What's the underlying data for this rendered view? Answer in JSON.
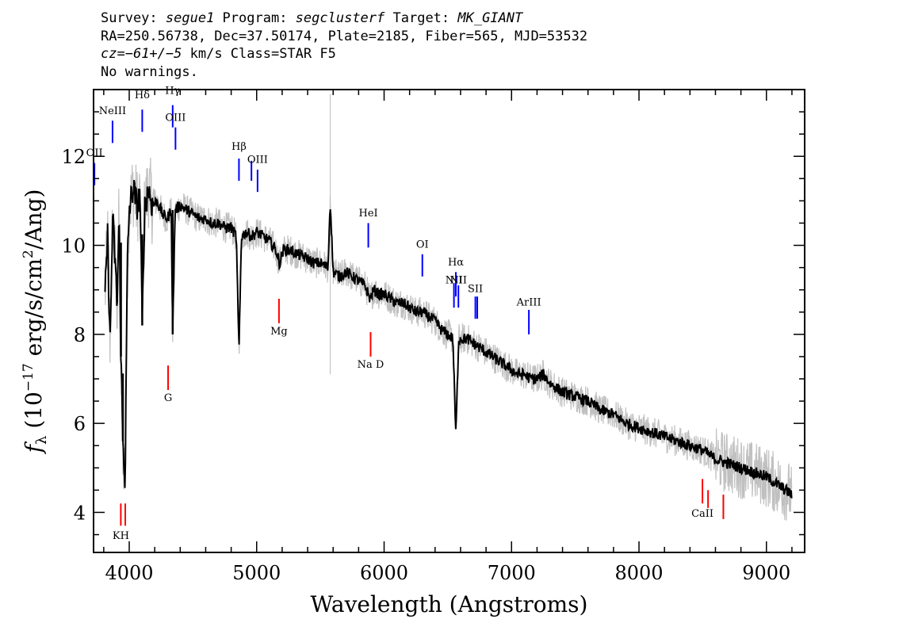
{
  "header": {
    "survey_prefix": "Survey: ",
    "survey": "segue1",
    "program_prefix": " Program: ",
    "program": "segclusterf",
    "target_prefix": " Target: ",
    "target": "MK_GIANT",
    "line2": "RA=250.56738, Dec=37.50174, Plate=2185, Fiber=565, MJD=53532",
    "cz_label": "cz",
    "cz_value": "=−61+/−5",
    "cz_rest": " km/s Class=STAR F5",
    "line4": "No warnings."
  },
  "colors": {
    "flux": "#000000",
    "error_band": "#c0c0c0",
    "emission": "#0000ff",
    "absorption": "#ff0000"
  },
  "chart_data": {
    "type": "line",
    "title": "",
    "xlabel": "Wavelength (Angstroms)",
    "ylabel_parts": {
      "f": "f",
      "lambda": "λ",
      "pre": " (10",
      "exp": "−17",
      "mid": " erg/s/cm",
      "exp2": "2",
      "post": "/Ang)"
    },
    "xlim": [
      3720,
      9300
    ],
    "ylim": [
      3.1,
      13.5
    ],
    "xticks": [
      4000,
      5000,
      6000,
      7000,
      8000,
      9000
    ],
    "yticks": [
      4,
      6,
      8,
      10,
      12
    ],
    "xtick_labels": [
      "4000",
      "5000",
      "6000",
      "7000",
      "8000",
      "9000"
    ],
    "ytick_labels": [
      "4",
      "6",
      "8",
      "10",
      "12"
    ],
    "series": [
      {
        "values": [
          [
            3810,
            8.8
          ],
          [
            3830,
            10.2
          ],
          [
            3850,
            7.8
          ],
          [
            3870,
            10.6
          ],
          [
            3890,
            9.6
          ],
          [
            3905,
            8.6
          ],
          [
            3920,
            10.7
          ],
          [
            3935,
            7.5
          ],
          [
            3950,
            5.6
          ],
          [
            3968,
            4.7
          ],
          [
            3985,
            9.5
          ],
          [
            4000,
            10.8
          ],
          [
            4030,
            11.3
          ],
          [
            4060,
            10.9
          ],
          [
            4085,
            11.1
          ],
          [
            4102,
            8.2
          ],
          [
            4120,
            10.8
          ],
          [
            4150,
            11.3
          ],
          [
            4180,
            10.9
          ],
          [
            4220,
            11.0
          ],
          [
            4260,
            10.7
          ],
          [
            4300,
            10.6
          ],
          [
            4330,
            10.8
          ],
          [
            4341,
            8.0
          ],
          [
            4360,
            10.8
          ],
          [
            4400,
            10.9
          ],
          [
            4450,
            10.8
          ],
          [
            4500,
            10.7
          ],
          [
            4550,
            10.6
          ],
          [
            4600,
            10.6
          ],
          [
            4650,
            10.5
          ],
          [
            4700,
            10.5
          ],
          [
            4750,
            10.4
          ],
          [
            4800,
            10.4
          ],
          [
            4840,
            10.2
          ],
          [
            4861,
            7.6
          ],
          [
            4880,
            10.2
          ],
          [
            4920,
            10.3
          ],
          [
            4960,
            10.2
          ],
          [
            5000,
            10.3
          ],
          [
            5050,
            10.2
          ],
          [
            5100,
            10.1
          ],
          [
            5150,
            9.9
          ],
          [
            5180,
            9.6
          ],
          [
            5210,
            9.9
          ],
          [
            5260,
            9.9
          ],
          [
            5320,
            9.8
          ],
          [
            5400,
            9.7
          ],
          [
            5450,
            9.6
          ],
          [
            5500,
            9.6
          ],
          [
            5560,
            9.5
          ],
          [
            5577,
            11.0
          ],
          [
            5600,
            9.4
          ],
          [
            5650,
            9.3
          ],
          [
            5700,
            9.4
          ],
          [
            5750,
            9.3
          ],
          [
            5800,
            9.2
          ],
          [
            5850,
            9.1
          ],
          [
            5890,
            8.8
          ],
          [
            5920,
            9.0
          ],
          [
            5960,
            8.9
          ],
          [
            6000,
            8.9
          ],
          [
            6050,
            8.8
          ],
          [
            6100,
            8.7
          ],
          [
            6150,
            8.7
          ],
          [
            6200,
            8.6
          ],
          [
            6250,
            8.5
          ],
          [
            6300,
            8.5
          ],
          [
            6350,
            8.4
          ],
          [
            6400,
            8.3
          ],
          [
            6450,
            8.1
          ],
          [
            6500,
            8.0
          ],
          [
            6540,
            7.9
          ],
          [
            6563,
            5.7
          ],
          [
            6585,
            7.9
          ],
          [
            6620,
            7.9
          ],
          [
            6650,
            7.9
          ],
          [
            6700,
            7.8
          ],
          [
            6750,
            7.7
          ],
          [
            6800,
            7.6
          ],
          [
            6850,
            7.5
          ],
          [
            6900,
            7.4
          ],
          [
            6950,
            7.3
          ],
          [
            7000,
            7.2
          ],
          [
            7050,
            7.1
          ],
          [
            7100,
            7.1
          ],
          [
            7150,
            7.0
          ],
          [
            7200,
            7.0
          ],
          [
            7250,
            7.1
          ],
          [
            7300,
            6.9
          ],
          [
            7400,
            6.7
          ],
          [
            7500,
            6.6
          ],
          [
            7600,
            6.5
          ],
          [
            7700,
            6.3
          ],
          [
            7800,
            6.2
          ],
          [
            7900,
            6.0
          ],
          [
            8000,
            5.9
          ],
          [
            8100,
            5.8
          ],
          [
            8200,
            5.7
          ],
          [
            8300,
            5.6
          ],
          [
            8400,
            5.5
          ],
          [
            8500,
            5.4
          ],
          [
            8600,
            5.2
          ],
          [
            8700,
            5.1
          ],
          [
            8800,
            5.0
          ],
          [
            8900,
            4.9
          ],
          [
            9000,
            4.8
          ],
          [
            9100,
            4.6
          ],
          [
            9200,
            4.4
          ]
        ]
      }
    ],
    "emission_lines": [
      {
        "label": "OII",
        "wave": 3727,
        "y0": 11.35,
        "y1": 11.85,
        "label_y": 12.0
      },
      {
        "label": "NeIII",
        "wave": 3869,
        "y0": 12.3,
        "y1": 12.8,
        "label_y": 12.95
      },
      {
        "label": "Hδ",
        "wave": 4102,
        "y0": 12.55,
        "y1": 13.05,
        "label_y": 13.3
      },
      {
        "label": "Hγ",
        "wave": 4341,
        "y0": 12.65,
        "y1": 13.15,
        "label_y": 13.4
      },
      {
        "label": "OIII",
        "wave": 4363,
        "y0": 12.15,
        "y1": 12.65,
        "label_y": 12.8
      },
      {
        "label": "Hβ",
        "wave": 4861,
        "y0": 11.45,
        "y1": 11.95,
        "label_y": 12.15
      },
      {
        "label": "OIII",
        "wave": 4959,
        "y0": 11.45,
        "y1": 11.9,
        "label_y": null
      },
      {
        "label": "OIII",
        "wave": 5007,
        "y0": 11.2,
        "y1": 11.7,
        "label_y": 11.85
      },
      {
        "label": "HeI",
        "wave": 5876,
        "y0": 9.95,
        "y1": 10.5,
        "label_y": 10.65
      },
      {
        "label": "OI",
        "wave": 6300,
        "y0": 9.3,
        "y1": 9.8,
        "label_y": 9.95
      },
      {
        "label": "NII",
        "wave": 6548,
        "y0": 8.6,
        "y1": 9.15,
        "label_y": 9.15
      },
      {
        "label": "Hα",
        "wave": 6563,
        "y0": 8.85,
        "y1": 9.4,
        "label_y": 9.55
      },
      {
        "label": "NII",
        "wave": 6583,
        "y0": 8.6,
        "y1": 9.1,
        "label_y": 9.15
      },
      {
        "label": "SII",
        "wave": 6716,
        "y0": 8.35,
        "y1": 8.85,
        "label_y": 8.95
      },
      {
        "label": "SII",
        "wave": 6731,
        "y0": 8.35,
        "y1": 8.85,
        "label_y": null
      },
      {
        "label": "ArIII",
        "wave": 7136,
        "y0": 8.0,
        "y1": 8.55,
        "label_y": 8.65
      }
    ],
    "absorption_lines": [
      {
        "label": "KH",
        "wave": 3934,
        "y0": 3.7,
        "y1": 4.2,
        "label_y": 3.4
      },
      {
        "label": "",
        "wave": 3969,
        "y0": 3.7,
        "y1": 4.2,
        "label_y": null
      },
      {
        "label": "G",
        "wave": 4305,
        "y0": 6.75,
        "y1": 7.3,
        "label_y": 6.5
      },
      {
        "label": "Mg",
        "wave": 5175,
        "y0": 8.25,
        "y1": 8.8,
        "label_y": 8.0
      },
      {
        "label": "Na D",
        "wave": 5894,
        "y0": 7.5,
        "y1": 8.05,
        "label_y": 7.25
      },
      {
        "label": "CaII",
        "wave": 8498,
        "y0": 4.2,
        "y1": 4.75,
        "label_y": 3.9
      },
      {
        "label": "",
        "wave": 8542,
        "y0": 4.1,
        "y1": 4.5,
        "label_y": null
      },
      {
        "label": "",
        "wave": 8662,
        "y0": 3.85,
        "y1": 4.4,
        "label_y": null
      }
    ]
  }
}
